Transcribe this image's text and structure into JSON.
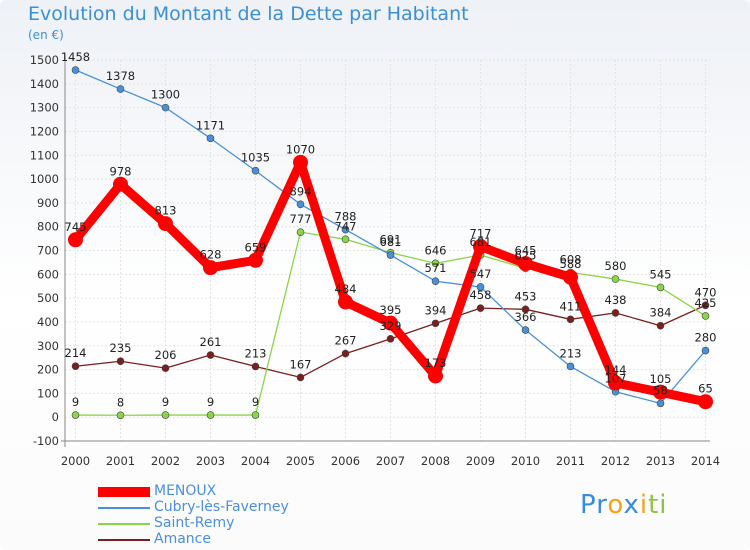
{
  "chart_data": {
    "type": "line",
    "title": "Evolution du Montant de la Dette par Habitant",
    "unit": "(en €)",
    "x": [
      "2000",
      "2001",
      "2002",
      "2003",
      "2004",
      "2005",
      "2006",
      "2007",
      "2008",
      "2009",
      "2010",
      "2011",
      "2012",
      "2013",
      "2014"
    ],
    "ylim": [
      -100,
      1500
    ],
    "yticks": [
      -100,
      0,
      100,
      200,
      300,
      400,
      500,
      600,
      700,
      800,
      900,
      1000,
      1100,
      1200,
      1300,
      1400,
      1500
    ],
    "grid": true,
    "legend_position": "bottom-left",
    "series": [
      {
        "name": "MENOUX",
        "color": "#ff0000",
        "values": [
          745,
          978,
          813,
          628,
          659,
          1070,
          484,
          395,
          173,
          717,
          645,
          588,
          144,
          105,
          65
        ]
      },
      {
        "name": "Cubry-lès-Faverney",
        "color": "#4a90d9",
        "values": [
          1458,
          1378,
          1300,
          1171,
          1035,
          894,
          788,
          681,
          571,
          547,
          366,
          213,
          107,
          58,
          280
        ]
      },
      {
        "name": "Saint-Remy",
        "color": "#8bd44a",
        "values": [
          9,
          8,
          9,
          9,
          9,
          777,
          747,
          691,
          646,
          681,
          625,
          608,
          580,
          545,
          425
        ]
      },
      {
        "name": "Amance",
        "color": "#7a1f1f",
        "values": [
          214,
          235,
          206,
          261,
          213,
          167,
          267,
          329,
          394,
          458,
          453,
          411,
          438,
          384,
          470
        ]
      }
    ]
  },
  "logo": {
    "letters": [
      "P",
      "r",
      "o",
      "x",
      "i",
      "t",
      "i"
    ],
    "colors": [
      "#3a8be0",
      "#3a8be0",
      "#f2a21b",
      "#3a8be0",
      "#f2a21b",
      "#8bc53f",
      "#8bc53f"
    ]
  }
}
